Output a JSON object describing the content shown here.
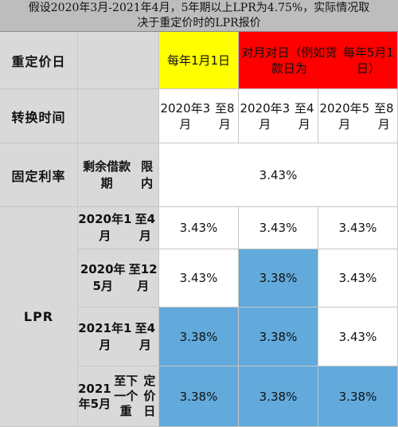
{
  "caption": {
    "line1": "假设2020年3月-2021年4月，5年期以上LPR为4.75%，实际情况取",
    "line2": "决于重定价时的LPR报价"
  },
  "rows": {
    "reprice_date": {
      "label": "重定价日",
      "option_a": "每年1月1日",
      "option_b_line1": "对月对日（例如贷款日为",
      "option_b_line2": "每年5月1日）"
    },
    "switch_time": {
      "label": "转换时间",
      "col1_line1": "2020年3月",
      "col1_line2": "至8月",
      "col2_line1": "2020年3月",
      "col2_line2": "至4月",
      "col3_line1": "2020年5月",
      "col3_line2": "至8月"
    },
    "fixed_rate": {
      "label": "固定利率",
      "sub_line1": "剩余借款期",
      "sub_line2": "限内",
      "value": "3.43%"
    },
    "lpr": {
      "label": "LPR",
      "periods": [
        {
          "line1": "2020年1月",
          "line2": "至4月",
          "line3": "",
          "values": [
            "3.43%",
            "3.43%",
            "3.43%"
          ]
        },
        {
          "line1": "2020年5月",
          "line2": "至12月",
          "line3": "",
          "values": [
            "3.43%",
            "3.38%",
            "3.43%"
          ]
        },
        {
          "line1": "2021年1月",
          "line2": "至4月",
          "line3": "",
          "values": [
            "3.38%",
            "3.38%",
            "3.43%"
          ]
        },
        {
          "line1": "2021年5月",
          "line2": "至下一个重",
          "line3": "定价日",
          "values": [
            "3.38%",
            "3.38%",
            "3.38%"
          ]
        }
      ]
    }
  },
  "colors": {
    "header_gray": "#d9d9d9",
    "highlight_yellow": "#ffff00",
    "highlight_red": "#ff0000",
    "changed_blue": "#62aadb"
  }
}
